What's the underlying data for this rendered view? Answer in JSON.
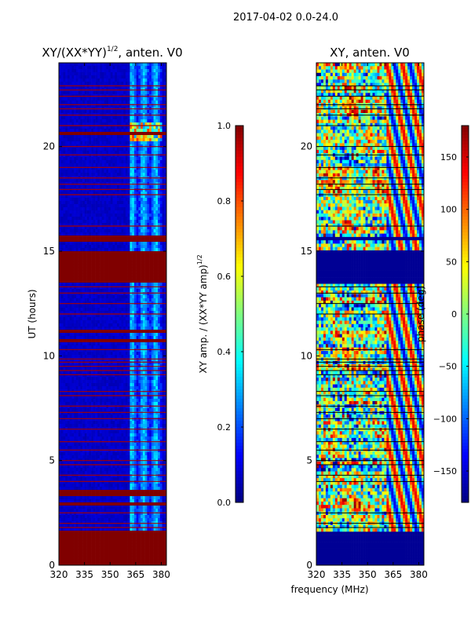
{
  "suptitle": "2017-04-02 0.0-24.0",
  "xlabel": "frequency (MHz)",
  "chart_data": [
    {
      "type": "heatmap",
      "title": "XY/(XX*YY)",
      "title_exponent": "1/2",
      "title_suffix": ", anten. V0",
      "ylabel": "UT (hours)",
      "xlim": [
        320,
        383
      ],
      "ylim": [
        0,
        24
      ],
      "x_ticks": [
        320,
        335,
        350,
        365,
        380
      ],
      "y_ticks": [
        0,
        5,
        10,
        15,
        20
      ],
      "background_value": 0.05,
      "saturated_bands_hours": [
        [
          0,
          1.6
        ],
        [
          3.3,
          3.6
        ],
        [
          2.9,
          3.05
        ],
        [
          10.65,
          10.8
        ],
        [
          11.15,
          11.3
        ],
        [
          13.5,
          15.0
        ],
        [
          15.5,
          15.75
        ],
        [
          20.5,
          20.75
        ]
      ],
      "flagged_lines_hours": [
        1.8,
        2.0,
        2.5,
        4.0,
        4.3,
        4.8,
        5.0,
        5.5,
        5.9,
        6.5,
        7.0,
        7.3,
        7.6,
        8.1,
        8.3,
        9.1,
        9.3,
        9.5,
        9.7,
        9.85,
        10.3,
        12.0,
        12.5,
        13.0,
        13.3,
        16.2,
        17.7,
        17.95,
        18.2,
        18.5,
        19.0,
        19.6,
        20.0,
        21.0,
        21.5,
        21.8,
        22.0,
        22.4,
        22.7,
        22.9
      ],
      "active_freq_range_mhz": [
        361,
        381
      ],
      "colorbar": {
        "label": "XY amp. / (XX*YY amp)",
        "label_exponent": "1/2",
        "range": [
          0.0,
          1.0
        ],
        "ticks": [
          "0.0",
          "0.2",
          "0.4",
          "0.6",
          "0.8",
          "1.0"
        ]
      }
    },
    {
      "type": "heatmap",
      "title": "XY, anten. V0",
      "ylabel": "",
      "xlim": [
        320,
        383
      ],
      "ylim": [
        0,
        24
      ],
      "x_ticks": [
        320,
        335,
        350,
        365,
        380
      ],
      "y_ticks": [
        0,
        5,
        10,
        15,
        20
      ],
      "value_range": [
        -180,
        180
      ],
      "flagged_bands_hours": [
        [
          0,
          1.6
        ],
        [
          13.5,
          15.0
        ],
        [
          15.5,
          15.75
        ]
      ],
      "colorbar": {
        "label": "phase (deg)",
        "range": [
          -180,
          180
        ],
        "ticks": [
          "-150",
          "-100",
          "-50",
          "0",
          "50",
          "100",
          "150"
        ]
      }
    }
  ],
  "colormap": "jet"
}
